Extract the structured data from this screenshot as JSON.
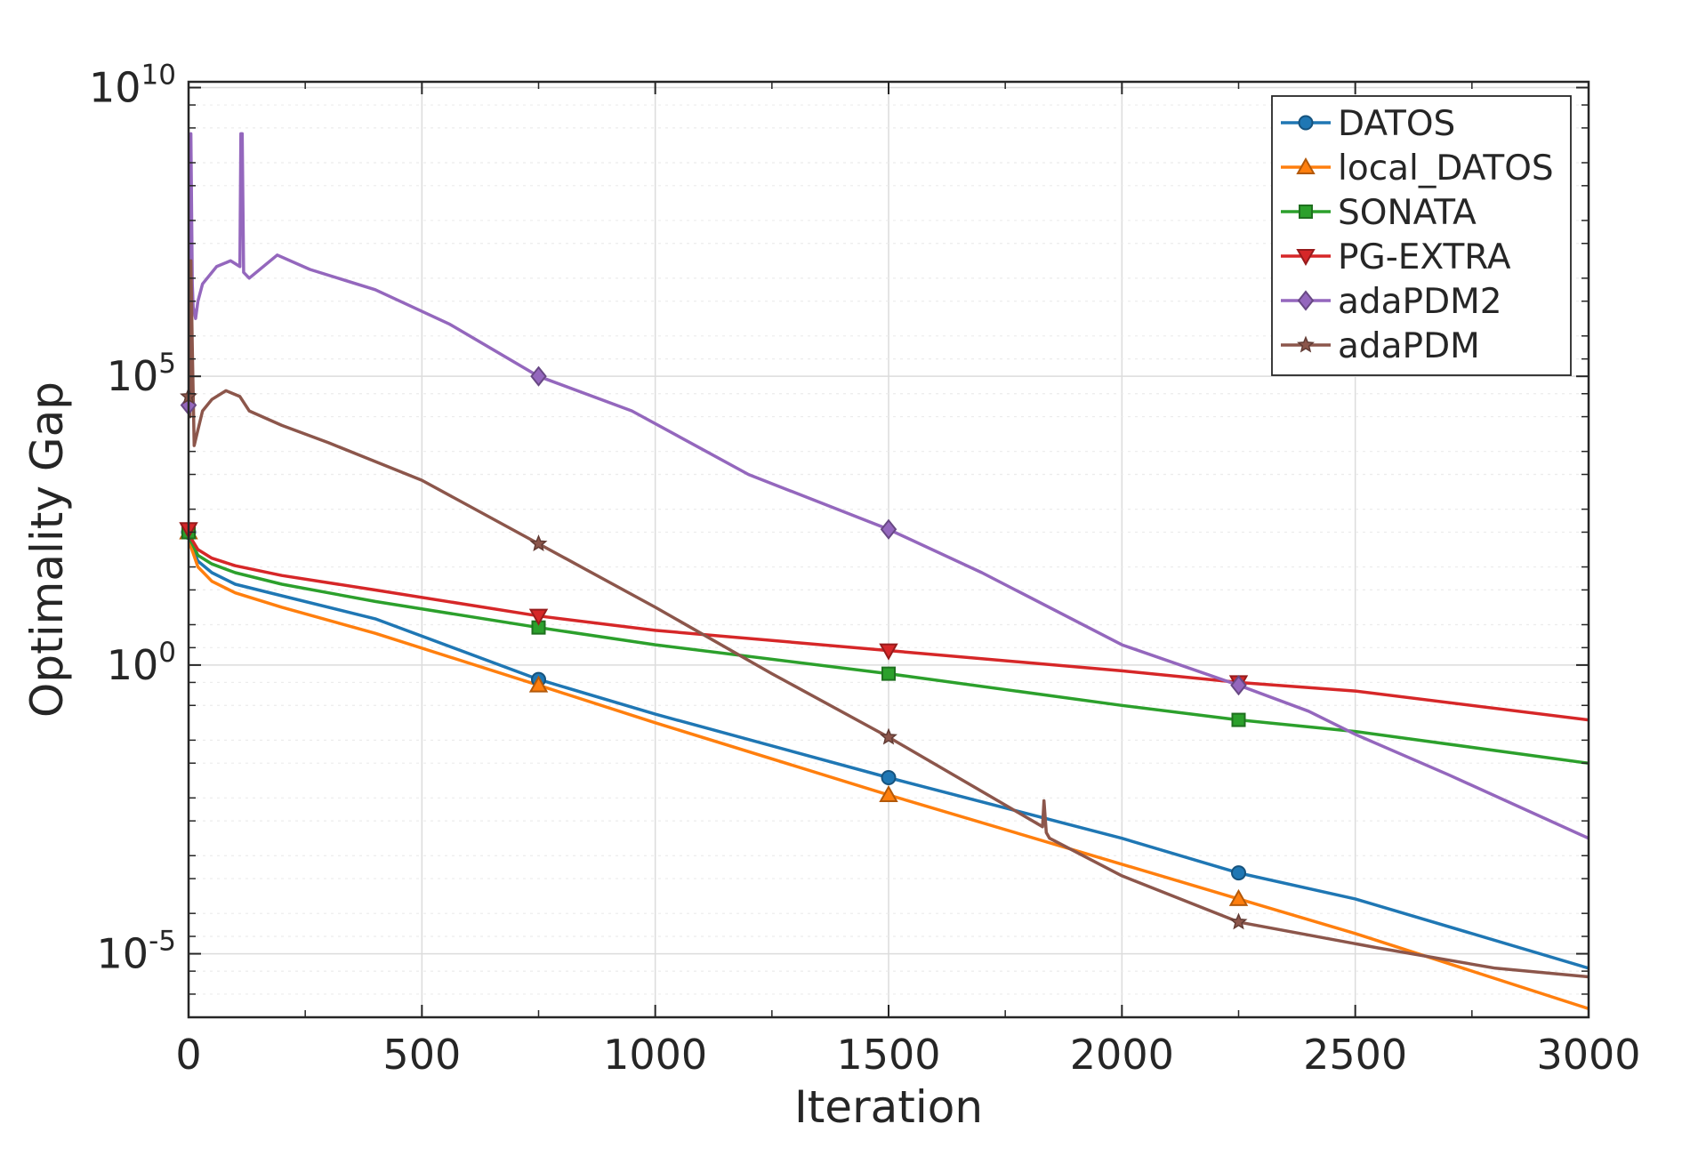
{
  "chart_data": {
    "type": "line",
    "title": "",
    "xlabel": "Iteration",
    "ylabel": "Optimality Gap",
    "yscale": "log",
    "xlim": [
      0,
      3000
    ],
    "ylim_log10": [
      -6.1,
      10.1
    ],
    "xticks": [
      0,
      500,
      1000,
      1500,
      2000,
      2500,
      3000
    ],
    "xtick_labels": [
      "0",
      "500",
      "1000",
      "1500",
      "2000",
      "2500",
      "3000"
    ],
    "yticks_log10": [
      -5,
      0,
      5,
      10
    ],
    "ytick_base": "10",
    "ytick_exponents": [
      "-5",
      "0",
      "5",
      "10"
    ],
    "grid": true,
    "legend_position": "top-right",
    "series": [
      {
        "name": "DATOS",
        "color": "#1f77b4",
        "marker": "circle",
        "x": [
          0,
          5,
          20,
          50,
          100,
          200,
          400,
          750,
          1000,
          1500,
          2000,
          2250,
          2500,
          3000
        ],
        "log10_y": [
          2.3,
          2.1,
          1.8,
          1.6,
          1.4,
          1.2,
          0.8,
          -0.25,
          -0.85,
          -1.95,
          -3.0,
          -3.6,
          -4.05,
          -5.25
        ],
        "markers_at": [
          0,
          750,
          1500,
          2250
        ]
      },
      {
        "name": "local_DATOS",
        "color": "#ff7f0e",
        "marker": "triangle-up",
        "x": [
          0,
          5,
          20,
          50,
          100,
          200,
          400,
          750,
          1000,
          1500,
          2000,
          2250,
          2500,
          3000
        ],
        "log10_y": [
          2.3,
          2.05,
          1.7,
          1.45,
          1.25,
          1.0,
          0.55,
          -0.35,
          -1.0,
          -2.25,
          -3.45,
          -4.05,
          -4.65,
          -5.95
        ],
        "markers_at": [
          0,
          750,
          1500,
          2250
        ]
      },
      {
        "name": "SONATA",
        "color": "#2ca02c",
        "marker": "square",
        "x": [
          0,
          5,
          20,
          50,
          100,
          200,
          400,
          750,
          1000,
          1500,
          2000,
          2250,
          2500,
          3000
        ],
        "log10_y": [
          2.3,
          2.15,
          1.9,
          1.75,
          1.6,
          1.4,
          1.1,
          0.65,
          0.35,
          -0.15,
          -0.7,
          -0.95,
          -1.15,
          -1.7
        ],
        "markers_at": [
          0,
          750,
          1500,
          2250
        ]
      },
      {
        "name": "PG-EXTRA",
        "color": "#d62728",
        "marker": "triangle-down",
        "x": [
          0,
          5,
          20,
          50,
          100,
          200,
          400,
          750,
          1000,
          1500,
          2000,
          2250,
          2500,
          3000
        ],
        "log10_y": [
          2.35,
          2.2,
          2.0,
          1.85,
          1.72,
          1.55,
          1.3,
          0.85,
          0.6,
          0.25,
          -0.1,
          -0.3,
          -0.45,
          -0.95
        ],
        "markers_at": [
          0,
          750,
          1500,
          2250
        ]
      },
      {
        "name": "adaPDM2",
        "color": "#9467bd",
        "marker": "diamond",
        "x": [
          0,
          2,
          3,
          5,
          8,
          10,
          15,
          20,
          30,
          60,
          90,
          110,
          112,
          115,
          118,
          130,
          190,
          260,
          400,
          560,
          750,
          950,
          1200,
          1500,
          1700,
          2000,
          2250,
          2400,
          2500,
          2700,
          3000
        ],
        "log10_y": [
          4.5,
          4.9,
          8.0,
          9.2,
          6.6,
          6.2,
          6.0,
          6.3,
          6.6,
          6.9,
          7.0,
          6.9,
          9.2,
          9.2,
          6.8,
          6.7,
          7.1,
          6.85,
          6.5,
          5.9,
          5.0,
          4.4,
          3.3,
          2.35,
          1.6,
          0.35,
          -0.35,
          -0.8,
          -1.2,
          -1.9,
          -3.0
        ],
        "markers_at": [
          0,
          750,
          1500,
          2250
        ]
      },
      {
        "name": "adaPDM",
        "color": "#8c564b",
        "marker": "star",
        "x": [
          0,
          3,
          5,
          8,
          12,
          18,
          30,
          50,
          80,
          110,
          130,
          200,
          300,
          500,
          750,
          1000,
          1250,
          1500,
          1830,
          1833,
          1838,
          1845,
          2000,
          2250,
          2550,
          2800,
          3000
        ],
        "log10_y": [
          4.65,
          4.3,
          7.0,
          5.5,
          3.8,
          4.0,
          4.4,
          4.6,
          4.75,
          4.65,
          4.4,
          4.15,
          3.85,
          3.2,
          2.1,
          1.0,
          -0.15,
          -1.25,
          -2.8,
          -2.35,
          -2.9,
          -3.0,
          -3.65,
          -4.45,
          -4.9,
          -5.25,
          -5.4
        ],
        "markers_at": [
          0,
          750,
          1500,
          2250
        ]
      }
    ]
  }
}
